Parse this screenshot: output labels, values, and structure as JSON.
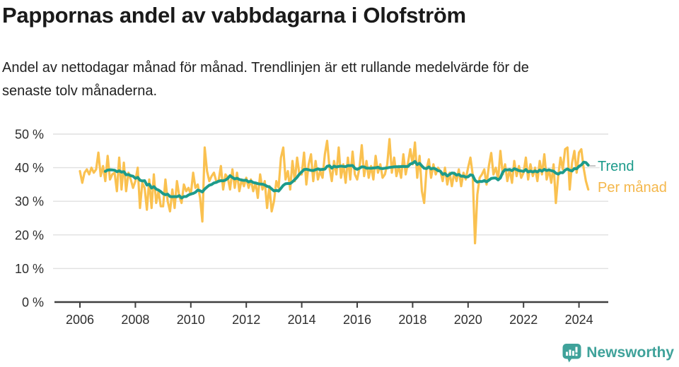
{
  "header": {
    "title": "Pappornas andel av vabbdagarna i Olofström",
    "subtitle_line1": "Andel av nettodagar månad för månad. Trendlinjen är ett rullande medelvärde för de",
    "subtitle_line2": "senaste tolv månaderna."
  },
  "chart_data": {
    "type": "line",
    "title": "Pappornas andel av vabbdagarna i Olofström",
    "unit": "%",
    "grid": true,
    "legend_position": "right-of-line-ends",
    "x_axis": {
      "start": "2006-01",
      "end": "2024-05",
      "ticks": [
        2006,
        2008,
        2010,
        2012,
        2014,
        2016,
        2018,
        2020,
        2022,
        2024
      ]
    },
    "y_axis": {
      "ylim": [
        0,
        52
      ],
      "ticks": [
        {
          "value": 0,
          "label": "0 %"
        },
        {
          "value": 10,
          "label": "10 %"
        },
        {
          "value": 20,
          "label": "20 %"
        },
        {
          "value": 30,
          "label": "30 %"
        },
        {
          "value": 40,
          "label": "40 %"
        },
        {
          "value": 50,
          "label": "50 %"
        }
      ]
    },
    "series": [
      {
        "name": "Per månad",
        "color": "#FAC150",
        "values_by_year": {
          "2006": [
            39,
            35.5,
            38.5,
            39.5,
            38,
            40,
            38.5,
            39.5,
            44.5,
            37.5,
            40.5,
            36
          ],
          "2007": [
            43.5,
            36.5,
            38,
            38.5,
            33,
            43,
            33.5,
            41.5,
            33,
            38.5,
            36.5,
            34
          ],
          "2008": [
            36,
            40,
            28,
            35.5,
            34,
            27.5,
            36.5,
            28,
            38,
            29.5,
            33,
            28.5
          ],
          "2009": [
            28.5,
            36.5,
            30,
            27,
            33.5,
            28,
            36,
            31.5,
            29.5,
            35,
            33,
            34
          ],
          "2010": [
            32,
            38.5,
            34,
            35,
            31,
            24,
            46,
            39,
            36,
            37.5,
            38.5,
            36
          ],
          "2011": [
            36,
            40.5,
            33.5,
            38,
            37,
            33.5,
            39.5,
            34,
            38.5,
            33,
            36.5,
            34.5
          ],
          "2012": [
            37,
            34,
            36.5,
            33,
            35.5,
            31,
            38,
            33.5,
            36,
            28,
            34.5,
            27
          ],
          "2013": [
            30,
            36,
            34,
            43,
            46,
            36.5,
            39,
            33.5,
            42,
            36,
            43,
            38
          ],
          "2014": [
            38,
            44.5,
            35,
            41,
            44,
            36,
            42,
            36.5,
            39,
            37,
            44,
            48
          ],
          "2015": [
            40,
            36,
            42,
            38,
            46,
            37,
            41,
            35.5,
            43,
            36.5,
            44.8,
            38
          ],
          "2016": [
            36.5,
            40,
            46.7,
            37.5,
            42,
            37,
            40.5,
            36.5,
            43.5,
            38.5,
            41,
            37
          ],
          "2017": [
            38,
            41,
            48.5,
            38.5,
            43,
            37.5,
            40.5,
            37,
            44,
            38,
            41.5,
            45.5
          ],
          "2018": [
            41,
            47.5,
            37,
            43.5,
            33,
            29.5,
            39.5,
            42.5,
            37,
            41,
            38,
            40
          ],
          "2019": [
            39,
            36,
            40,
            35,
            38.5,
            34.5,
            38.5,
            36,
            39.5,
            34.5,
            38.5,
            36.5
          ],
          "2020": [
            40,
            43,
            38,
            17.5,
            32,
            37,
            38,
            39.5,
            35,
            40.5,
            44.4,
            38
          ],
          "2021": [
            40,
            36.5,
            45,
            38,
            41,
            36,
            39.5,
            35.5,
            42,
            37.5,
            40.5,
            37
          ],
          "2022": [
            38.5,
            43,
            36.5,
            41,
            37.5,
            40,
            36,
            42,
            38,
            44,
            36.5,
            39.5
          ],
          "2023": [
            35.5,
            41,
            29.5,
            37.5,
            43,
            39.5,
            45.5,
            46,
            33.5,
            41.5,
            45,
            38.5
          ],
          "2024": [
            44.5,
            45.5,
            40,
            36,
            33.5
          ]
        }
      },
      {
        "name": "Trend",
        "color": "#1D9B8B",
        "derived": "rolling mean of previous 12 months of 'Per månad'",
        "window_months": 12
      }
    ]
  },
  "footer": {
    "brand": "Newsworthy",
    "brand_color": "#3FA29A"
  }
}
